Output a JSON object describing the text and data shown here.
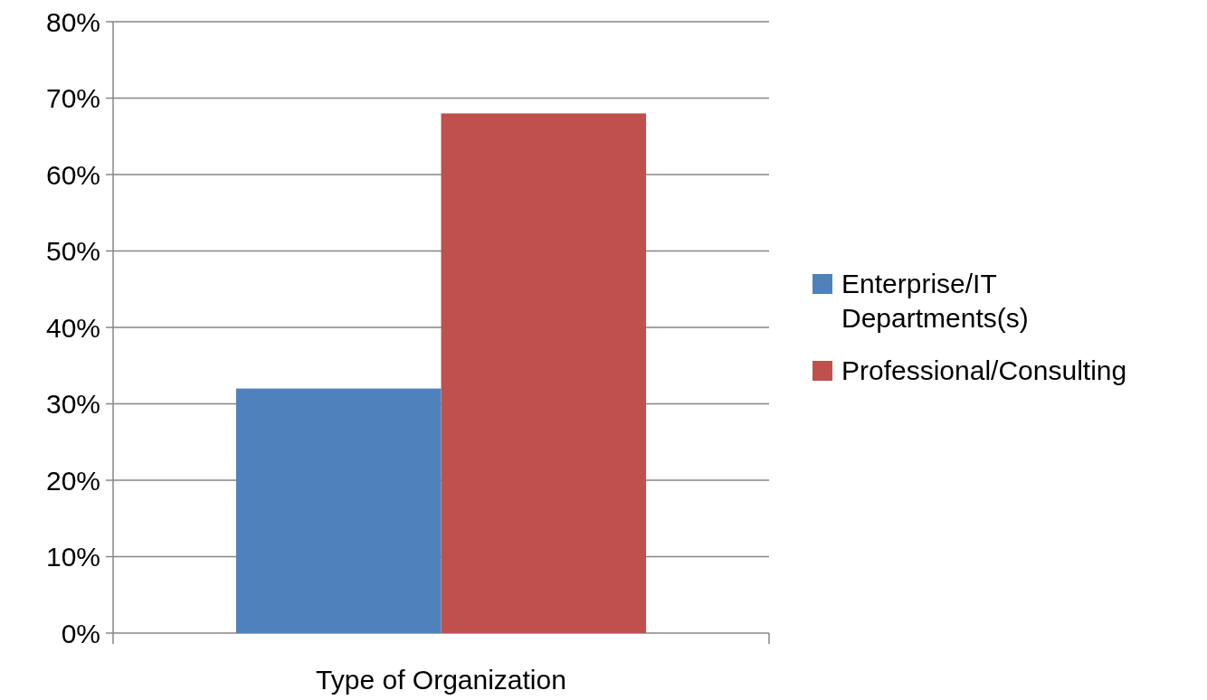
{
  "chart_data": {
    "type": "bar",
    "categories": [
      "Type of Organization"
    ],
    "series": [
      {
        "name": "Enterprise/IT Departments(s)",
        "color": "#4f81bd",
        "values": [
          32
        ]
      },
      {
        "name": "Professional/Consulting",
        "color": "#c0504d",
        "values": [
          68
        ]
      }
    ],
    "ylim": [
      0,
      80
    ],
    "yticks": [
      {
        "value": 0,
        "label": "0%"
      },
      {
        "value": 10,
        "label": "10%"
      },
      {
        "value": 20,
        "label": "20%"
      },
      {
        "value": 30,
        "label": "30%"
      },
      {
        "value": 40,
        "label": "40%"
      },
      {
        "value": 50,
        "label": "50%"
      },
      {
        "value": 60,
        "label": "60%"
      },
      {
        "value": 70,
        "label": "70%"
      },
      {
        "value": 80,
        "label": "80%"
      }
    ],
    "grid": "y",
    "legend": "right"
  }
}
